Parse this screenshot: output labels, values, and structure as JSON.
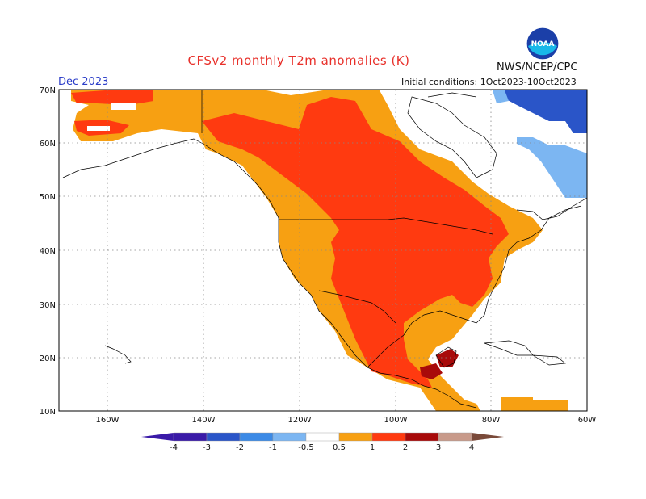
{
  "header": {
    "title": "CFSv2 monthly T2m anomalies (K)",
    "agency": "NWS/NCEP/CPC",
    "month": "Dec 2023",
    "initial_conditions": "Initial conditions: 1Oct2023-10Oct2023",
    "logo_text": "NOAA"
  },
  "map": {
    "lat_ticks": [
      "70N",
      "60N",
      "50N",
      "40N",
      "30N",
      "20N",
      "10N"
    ],
    "lon_ticks": [
      "160W",
      "140W",
      "120W",
      "100W",
      "80W",
      "60W"
    ]
  },
  "colorbar": {
    "labels": [
      "-4",
      "-3",
      "-2",
      "-1",
      "-0.5",
      "0.5",
      "1",
      "2",
      "3",
      "4"
    ],
    "colors": [
      "#3a1aa8",
      "#2a55c8",
      "#3c8ae6",
      "#7cb6f2",
      "#ffffff",
      "#f7a012",
      "#ff3a10",
      "#a80a0a",
      "#c89a8a",
      "#7a4a3a"
    ]
  }
}
